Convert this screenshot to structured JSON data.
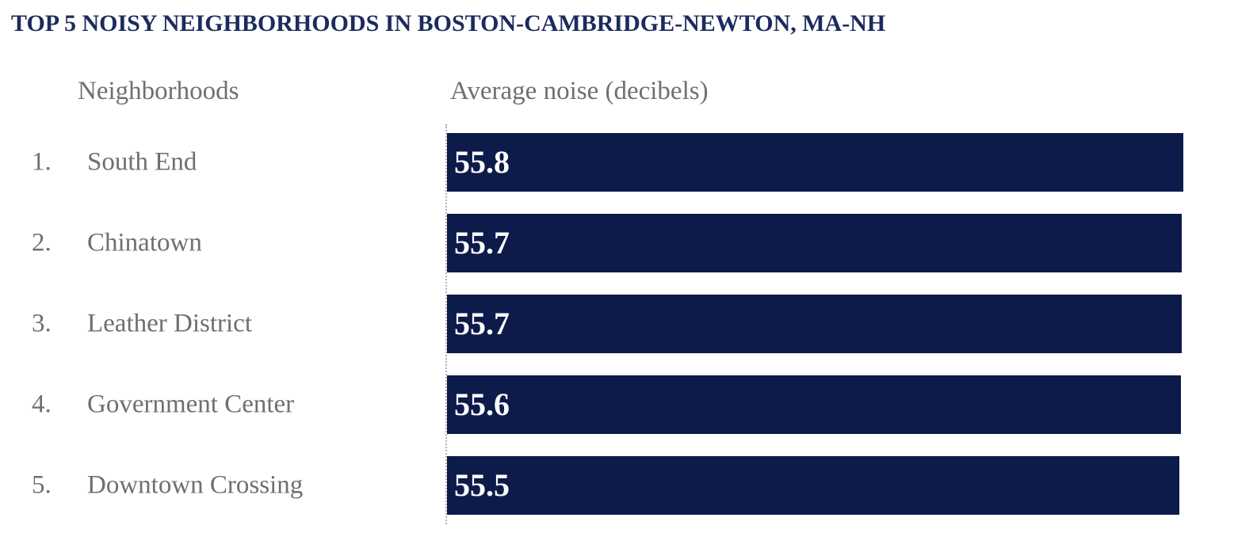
{
  "page": {
    "title": "TOP 5 NOISY NEIGHBORHOODS IN BOSTON-CAMBRIDGE-NEWTON, MA-NH"
  },
  "table": {
    "headers": {
      "neighborhoods": "Neighborhoods",
      "noise": "Average noise (decibels)"
    },
    "rows": [
      {
        "rank": "1.",
        "name": "South End",
        "value": "55.8"
      },
      {
        "rank": "2.",
        "name": "Chinatown",
        "value": "55.7"
      },
      {
        "rank": "3.",
        "name": "Leather District",
        "value": "55.7"
      },
      {
        "rank": "4.",
        "name": "Government Center",
        "value": "55.6"
      },
      {
        "rank": "5.",
        "name": "Downtown Crossing",
        "value": "55.5"
      }
    ]
  },
  "colors": {
    "bar": "#0d1b4a",
    "title": "#1c2b5e",
    "text_gray": "#6f6f6f",
    "value_text": "#ffffff",
    "axis_line": "#b0b0b0"
  },
  "chart_data": {
    "type": "bar",
    "orientation": "horizontal",
    "title": "TOP 5 NOISY NEIGHBORHOODS IN BOSTON-CAMBRIDGE-NEWTON, MA-NH",
    "categories": [
      "South End",
      "Chinatown",
      "Leather District",
      "Government Center",
      "Downtown Crossing"
    ],
    "values": [
      55.8,
      55.7,
      55.7,
      55.6,
      55.5
    ],
    "data_labels": [
      "55.8",
      "55.7",
      "55.7",
      "55.6",
      "55.5"
    ],
    "xlabel": "Average noise (decibels)",
    "ylabel": "Neighborhoods",
    "xlim": [
      0,
      56
    ],
    "grid": false,
    "legend": false,
    "bar_color": "#0d1b4a",
    "label_position": "inside-start"
  }
}
